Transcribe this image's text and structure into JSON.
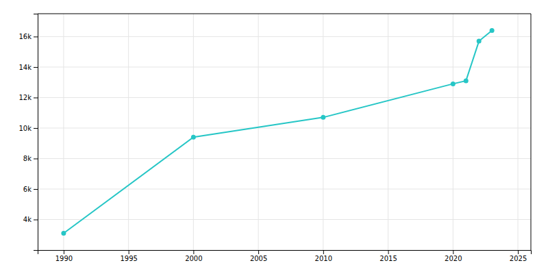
{
  "chart_data": {
    "type": "line",
    "x": [
      1990,
      2000,
      2010,
      2020,
      2021,
      2022,
      2023
    ],
    "values": [
      3100,
      9400,
      10700,
      12900,
      13100,
      15700,
      16400
    ],
    "color": "#26C6C6",
    "marker": "circle",
    "xlim": [
      1988,
      2026
    ],
    "xticks": [
      1990,
      1995,
      2000,
      2005,
      2010,
      2015,
      2020,
      2025
    ],
    "ylim": [
      2000,
      17500
    ],
    "yticks": [
      {
        "value": 4000,
        "label": "4k"
      },
      {
        "value": 6000,
        "label": "6k"
      },
      {
        "value": 8000,
        "label": "8k"
      },
      {
        "value": 10000,
        "label": "10k"
      },
      {
        "value": 12000,
        "label": "12k"
      },
      {
        "value": 14000,
        "label": "14k"
      },
      {
        "value": 16000,
        "label": "16k"
      }
    ],
    "grid": true
  }
}
